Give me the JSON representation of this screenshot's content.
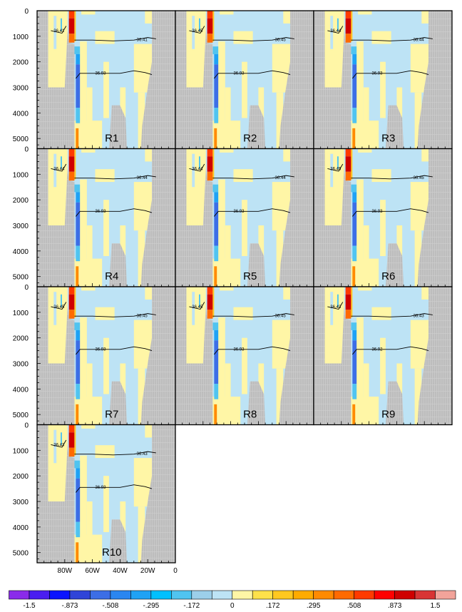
{
  "chart_data": {
    "type": "heatmap",
    "title": "",
    "xlabel": "",
    "ylabel": "",
    "xlim": [
      -100,
      0
    ],
    "ylim": [
      0,
      5400
    ],
    "y_reversed": true,
    "x_tick_values": [
      -80,
      -60,
      -40,
      -20,
      0
    ],
    "x_tick_labels": [
      "80W",
      "60W",
      "40W",
      "20W",
      "0"
    ],
    "y_tick_values": [
      0,
      1000,
      2000,
      3000,
      4000,
      5000
    ],
    "y_tick_labels": [
      "0",
      "1000",
      "2000",
      "3000",
      "4000",
      "5000"
    ],
    "panels": [
      {
        "name": "R1",
        "contours": [
          "36.41",
          "36.41",
          "36.93"
        ]
      },
      {
        "name": "R2",
        "contours": [
          "36.45",
          "36.45",
          "36.93"
        ]
      },
      {
        "name": "R3",
        "contours": [
          "36.44",
          "36.44",
          "36.93"
        ]
      },
      {
        "name": "R4",
        "contours": [
          "36.44",
          "36.44",
          "36.93"
        ]
      },
      {
        "name": "R5",
        "contours": [
          "36.44",
          "36.44",
          "36.93"
        ]
      },
      {
        "name": "R6",
        "contours": [
          "36.45",
          "36.45",
          "36.93"
        ]
      },
      {
        "name": "R7",
        "contours": [
          "36.45",
          "36.45",
          "36.93"
        ]
      },
      {
        "name": "R8",
        "contours": [
          "36.45",
          "36.45",
          "36.93"
        ]
      },
      {
        "name": "R9",
        "contours": [
          "36.43",
          "36.43",
          "36.92"
        ]
      },
      {
        "name": "R10",
        "contours": [
          "36.43",
          "36.43",
          "36.93"
        ]
      }
    ],
    "field_patches": [
      {
        "lon": [
          -92,
          -78
        ],
        "depth": [
          0,
          3000
        ],
        "value": 0.05
      },
      {
        "lon": [
          -88,
          -86
        ],
        "depth": [
          200,
          1500
        ],
        "value": -0.1
      },
      {
        "lon": [
          -83,
          -82
        ],
        "depth": [
          300,
          800
        ],
        "value": -0.25
      },
      {
        "lon": [
          -69,
          -64
        ],
        "depth": [
          1200,
          5400
        ],
        "value": 0.05
      },
      {
        "lon": [
          -73,
          -53
        ],
        "depth": [
          4300,
          5400
        ],
        "value": 0.05
      },
      {
        "lon": [
          -64,
          -60
        ],
        "depth": [
          3000,
          5400
        ],
        "value": 0.05
      },
      {
        "lon": [
          -58,
          -44
        ],
        "depth": [
          800,
          1300
        ],
        "value": 0.05
      },
      {
        "lon": [
          -68,
          -58
        ],
        "depth": [
          0,
          150
        ],
        "value": 0.05
      },
      {
        "lon": [
          -30,
          -17
        ],
        "depth": [
          1300,
          3200
        ],
        "value": 0.05
      },
      {
        "lon": [
          -27,
          -22
        ],
        "depth": [
          3200,
          5400
        ],
        "value": 0.05
      },
      {
        "lon": [
          -22,
          -17
        ],
        "depth": [
          0,
          500
        ],
        "value": 0.05
      },
      {
        "lon": [
          -40,
          -36
        ],
        "depth": [
          3000,
          5400
        ],
        "value": 0.05
      },
      {
        "lon": [
          -52,
          -48
        ],
        "depth": [
          2000,
          4200
        ],
        "value": 0.05
      },
      {
        "lon": [
          -77,
          -73
        ],
        "depth": [
          0,
          300
        ],
        "value": 0.6
      },
      {
        "lon": [
          -77,
          -73
        ],
        "depth": [
          300,
          900
        ],
        "value": 1.0
      },
      {
        "lon": [
          -77,
          -73
        ],
        "depth": [
          900,
          1250
        ],
        "value": 0.4
      },
      {
        "lon": [
          -73,
          -72
        ],
        "depth": [
          0,
          1200
        ],
        "value": 0.2
      },
      {
        "lon": [
          -73,
          -69
        ],
        "depth": [
          1400,
          1700
        ],
        "value": -0.25
      },
      {
        "lon": [
          -72,
          -69
        ],
        "depth": [
          1700,
          2100
        ],
        "value": -0.4
      },
      {
        "lon": [
          -72,
          -69
        ],
        "depth": [
          2100,
          3800
        ],
        "value": -0.7
      },
      {
        "lon": [
          -72,
          -69
        ],
        "depth": [
          3800,
          4400
        ],
        "value": -0.25
      },
      {
        "lon": [
          -72,
          -70
        ],
        "depth": [
          4600,
          5400
        ],
        "value": 0.35
      }
    ],
    "contour_lines": [
      [
        [
          -90,
          780
        ],
        [
          -82,
          880
        ],
        [
          -79,
          600
        ]
      ],
      [
        [
          -73,
          1150
        ],
        [
          -60,
          1150
        ],
        [
          -45,
          1180
        ],
        [
          -30,
          1150
        ],
        [
          -20,
          1050
        ],
        [
          -14,
          1100
        ]
      ],
      [
        [
          -72,
          2650
        ],
        [
          -69,
          2450
        ],
        [
          -55,
          2450
        ],
        [
          -40,
          2450
        ],
        [
          -30,
          2350
        ],
        [
          -22,
          2420
        ],
        [
          -17,
          2500
        ]
      ]
    ],
    "colorbar": {
      "labels": [
        "-1.5",
        "-.873",
        "-.508",
        "-.295",
        "-.172",
        "0",
        ".172",
        ".295",
        ".508",
        ".873",
        "1.5"
      ],
      "boundaries": [
        -1.5,
        -1.2,
        -0.873,
        -0.7,
        -0.508,
        -0.4,
        -0.295,
        -0.25,
        -0.172,
        -0.1,
        0,
        0.1,
        0.172,
        0.25,
        0.295,
        0.4,
        0.508,
        0.7,
        0.873,
        1.2,
        1.5
      ],
      "colors": [
        "#8a2bea",
        "#4a1df0",
        "#0a14ff",
        "#2f44d8",
        "#3c6ee6",
        "#2a86f0",
        "#1fa2f5",
        "#00c0ff",
        "#50c4f0",
        "#9ccfea",
        "#bde3f5",
        "#fff6a6",
        "#ffe14a",
        "#ffc820",
        "#ffab00",
        "#ff8a00",
        "#ff6a00",
        "#ff3a00",
        "#ff0000",
        "#cf0000",
        "#d83434",
        "#f2a39a"
      ]
    }
  }
}
